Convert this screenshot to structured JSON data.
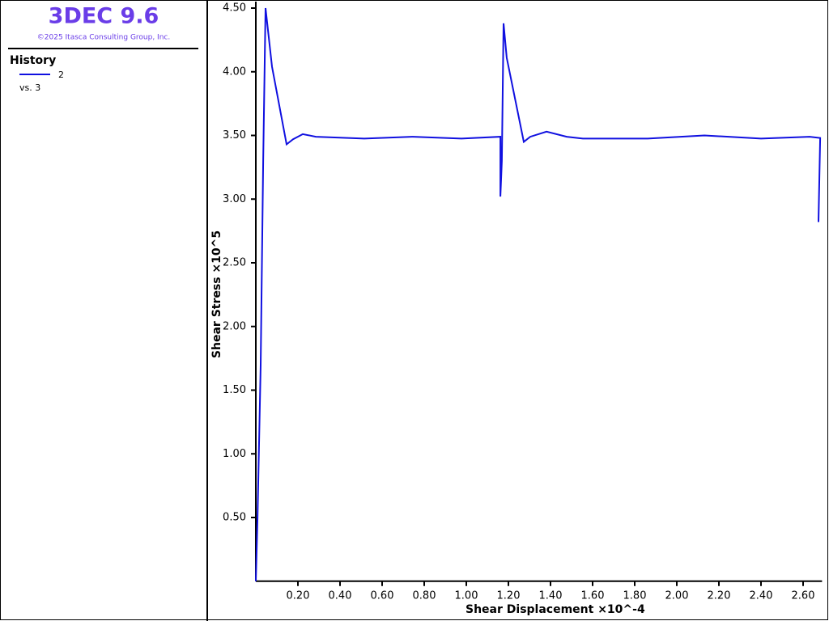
{
  "app": {
    "title": "3DEC 9.6",
    "copyright": "©2025 Itasca Consulting Group, Inc."
  },
  "chart_data": {
    "type": "line",
    "legend_title": "History",
    "legend_subtitle": "vs. 3",
    "xlabel": "Shear Displacement ×10^-4",
    "ylabel": "Shear Stress ×10^5",
    "xlim": [
      0,
      2.69
    ],
    "ylim": [
      0,
      4.5
    ],
    "xticks": [
      {
        "value": 0.2,
        "label": "0.20"
      },
      {
        "value": 0.4,
        "label": "0.40"
      },
      {
        "value": 0.6,
        "label": "0.60"
      },
      {
        "value": 0.8,
        "label": "0.80"
      },
      {
        "value": 1.0,
        "label": "1.00"
      },
      {
        "value": 1.2,
        "label": "1.20"
      },
      {
        "value": 1.4,
        "label": "1.40"
      },
      {
        "value": 1.6,
        "label": "1.60"
      },
      {
        "value": 1.8,
        "label": "1.80"
      },
      {
        "value": 2.0,
        "label": "2.00"
      },
      {
        "value": 2.2,
        "label": "2.20"
      },
      {
        "value": 2.4,
        "label": "2.40"
      },
      {
        "value": 2.6,
        "label": "2.60"
      }
    ],
    "yticks": [
      {
        "value": 0.5,
        "label": "0.50"
      },
      {
        "value": 1.0,
        "label": "1.00"
      },
      {
        "value": 1.5,
        "label": "1.50"
      },
      {
        "value": 2.0,
        "label": "2.00"
      },
      {
        "value": 2.5,
        "label": "2.50"
      },
      {
        "value": 3.0,
        "label": "3.00"
      },
      {
        "value": 3.5,
        "label": "3.50"
      },
      {
        "value": 4.0,
        "label": "4.00"
      },
      {
        "value": 4.5,
        "label": "4.50"
      }
    ],
    "series": [
      {
        "name": "2",
        "color": "#1010e0",
        "x": [
          0,
          0.008,
          0.023,
          0.035,
          0.046,
          0.077,
          0.146,
          0.177,
          0.223,
          0.285,
          0.515,
          0.746,
          0.977,
          1.162,
          1.162,
          1.169,
          1.177,
          1.192,
          1.273,
          1.304,
          1.381,
          1.477,
          1.554,
          1.862,
          2.131,
          2.4,
          2.631,
          2.681,
          2.673
        ],
        "values": [
          0,
          0.5,
          1.7,
          3.3,
          4.5,
          4.04,
          3.43,
          3.47,
          3.51,
          3.49,
          3.475,
          3.49,
          3.475,
          3.49,
          3.02,
          3.3,
          4.38,
          4.11,
          3.45,
          3.49,
          3.53,
          3.49,
          3.475,
          3.475,
          3.5,
          3.475,
          3.49,
          3.48,
          2.82
        ]
      }
    ]
  }
}
